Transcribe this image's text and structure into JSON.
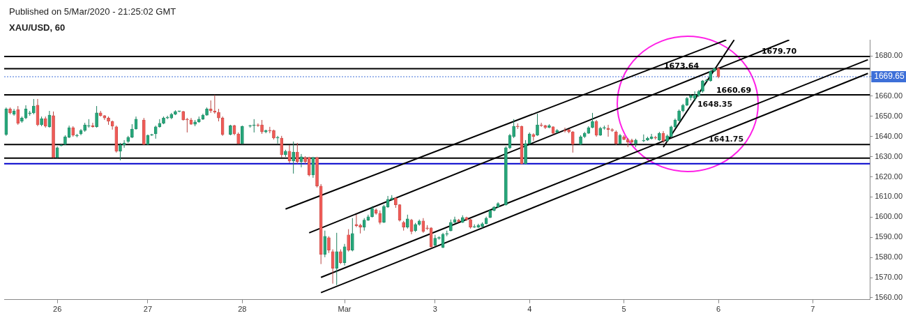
{
  "chart_data": {
    "type": "candlestick",
    "title": "XAU/USD, 60",
    "subtitle": "Published on 5/Mar/2020 - 21:25:02 GMT",
    "categories": [
      null,
      null,
      null,
      null,
      null,
      null,
      null,
      null,
      null,
      null,
      null,
      null,
      null,
      "26",
      null,
      null,
      null,
      null,
      null,
      null,
      null,
      null,
      null,
      null,
      null,
      null,
      null,
      null,
      null,
      null,
      null,
      null,
      null,
      null,
      null,
      null,
      "27",
      null,
      null,
      null,
      null,
      null,
      null,
      null,
      null,
      null,
      null,
      null,
      null,
      null,
      null,
      null,
      null,
      null,
      null,
      null,
      null,
      null,
      null,
      null,
      "28",
      null,
      null,
      null,
      null,
      null,
      null,
      null,
      null,
      null,
      null,
      null,
      null,
      null,
      null,
      null,
      null,
      null,
      null,
      null,
      null,
      null,
      null,
      null,
      null,
      null,
      "Mar",
      null,
      null,
      null,
      null,
      null,
      null,
      null,
      null,
      null,
      null,
      null,
      null,
      null,
      null,
      null,
      null,
      null,
      null,
      null,
      null,
      null,
      null,
      "3",
      null,
      null,
      null,
      null,
      null,
      null,
      null,
      null,
      null,
      null,
      null,
      null,
      null,
      null,
      null,
      null,
      null,
      null,
      null,
      null,
      null,
      null,
      null,
      "4",
      null,
      null,
      null,
      null,
      null,
      null,
      null,
      null,
      null,
      null,
      null,
      null,
      null,
      null,
      null,
      null,
      null,
      null,
      null,
      null,
      null,
      null,
      null,
      "5",
      null,
      null,
      null,
      null,
      null,
      null,
      null,
      null,
      null,
      null,
      null,
      null,
      null,
      null,
      null,
      null,
      null,
      null,
      null,
      null,
      null,
      null,
      null,
      "6",
      null,
      null,
      null,
      null,
      null,
      null,
      null,
      null,
      null,
      null,
      null,
      null,
      null,
      null,
      null,
      null,
      null,
      null,
      null,
      null,
      null,
      null,
      null,
      "7",
      null,
      null,
      null,
      null,
      null,
      null,
      null,
      null,
      null,
      null,
      null,
      null,
      null,
      null
    ],
    "ohlc": [
      [
        1641.0,
        1654.4,
        1640.3,
        1653.7
      ],
      [
        1653.7,
        1654.4,
        1651.0,
        1651.7
      ],
      [
        1651.0,
        1653.7,
        1650.3,
        1652.7
      ],
      [
        1653.4,
        1655.1,
        1645.8,
        1646.5
      ],
      [
        1647.5,
        1649.9,
        1646.8,
        1649.2
      ],
      [
        1649.2,
        1655.5,
        1648.6,
        1653.7
      ],
      [
        1651.3,
        1652.7,
        1650.3,
        1651.7
      ],
      [
        1651.7,
        1658.6,
        1651.0,
        1655.1
      ],
      [
        1655.5,
        1658.6,
        1645.1,
        1645.8
      ],
      [
        1645.8,
        1649.9,
        1645.1,
        1648.9
      ],
      [
        1648.9,
        1649.9,
        1644.4,
        1645.1
      ],
      [
        1644.8,
        1652.7,
        1644.4,
        1650.6
      ],
      [
        1650.3,
        1652.4,
        1629.3,
        1629.6
      ],
      [
        1629.6,
        1635.1,
        1629.3,
        1634.4
      ],
      [
        1635.4,
        1636.1,
        1635.1,
        1635.8
      ],
      [
        1636.1,
        1640.6,
        1635.8,
        1639.9
      ],
      [
        1639.6,
        1645.4,
        1639.2,
        1644.4
      ],
      [
        1644.4,
        1645.1,
        1639.9,
        1640.6
      ],
      [
        1640.3,
        1641.3,
        1639.6,
        1640.6
      ],
      [
        1641.3,
        1643.7,
        1640.6,
        1643.0
      ],
      [
        1643.0,
        1646.8,
        1642.3,
        1645.8
      ],
      [
        1645.1,
        1648.6,
        1644.4,
        1645.4
      ],
      [
        1645.4,
        1646.8,
        1644.4,
        1644.8
      ],
      [
        1644.8,
        1655.1,
        1644.4,
        1651.7
      ],
      [
        1651.7,
        1652.7,
        1649.9,
        1650.3
      ],
      [
        1650.3,
        1650.6,
        1648.2,
        1649.2
      ],
      [
        1649.2,
        1649.9,
        1645.8,
        1647.5
      ],
      [
        1647.5,
        1647.9,
        1643.4,
        1645.1
      ],
      [
        1644.8,
        1645.4,
        1632.0,
        1632.7
      ],
      [
        1632.7,
        1636.8,
        1628.2,
        1635.8
      ],
      [
        1635.8,
        1638.2,
        1634.4,
        1636.8
      ],
      [
        1637.5,
        1640.3,
        1636.8,
        1639.6
      ],
      [
        1639.6,
        1646.1,
        1639.2,
        1643.7
      ],
      [
        1643.7,
        1649.9,
        1643.4,
        1648.6
      ],
      null,
      [
        1648.2,
        1649.2,
        1635.8,
        1636.1
      ],
      [
        1636.1,
        1641.0,
        1635.8,
        1640.6
      ],
      [
        1640.6,
        1641.3,
        1640.3,
        1641.0
      ],
      [
        1641.3,
        1645.4,
        1638.9,
        1644.8
      ],
      [
        1644.8,
        1648.6,
        1644.4,
        1646.5
      ],
      [
        1646.5,
        1649.9,
        1646.1,
        1649.2
      ],
      [
        1649.2,
        1650.3,
        1648.6,
        1649.5
      ],
      [
        1649.2,
        1651.7,
        1648.6,
        1651.0
      ],
      [
        1651.0,
        1653.0,
        1650.6,
        1652.4
      ],
      [
        1652.4,
        1652.7,
        1652.0,
        1652.4
      ],
      [
        1652.4,
        1652.7,
        1647.9,
        1648.2
      ],
      [
        1648.6,
        1649.2,
        1642.0,
        1648.2
      ],
      [
        1648.2,
        1649.2,
        1645.8,
        1646.1
      ],
      [
        1646.1,
        1648.2,
        1645.1,
        1647.2
      ],
      [
        1647.2,
        1649.9,
        1646.8,
        1648.6
      ],
      [
        1648.6,
        1651.3,
        1648.2,
        1650.6
      ],
      [
        1650.6,
        1654.4,
        1650.3,
        1653.7
      ],
      [
        1653.7,
        1657.9,
        1651.7,
        1652.7
      ],
      [
        1652.7,
        1660.6,
        1651.3,
        1652.0
      ],
      [
        1652.0,
        1653.7,
        1647.5,
        1649.2
      ],
      [
        1649.2,
        1649.9,
        1640.3,
        1641.0
      ],
      null,
      [
        1641.0,
        1645.8,
        1640.6,
        1645.4
      ],
      [
        1645.4,
        1645.8,
        1640.6,
        1641.3
      ],
      [
        1641.3,
        1642.0,
        1636.1,
        1636.5
      ],
      [
        1636.5,
        1645.4,
        1636.1,
        1645.1
      ],
      null,
      [
        1645.1,
        1645.8,
        1644.4,
        1645.4
      ],
      [
        1645.4,
        1648.6,
        1642.0,
        1645.8
      ],
      [
        1645.8,
        1646.5,
        1644.8,
        1645.4
      ],
      [
        1645.8,
        1648.2,
        1641.3,
        1642.3
      ],
      [
        1642.3,
        1643.4,
        1641.6,
        1643.0
      ],
      [
        1643.0,
        1644.8,
        1641.6,
        1642.7
      ],
      [
        1643.0,
        1643.4,
        1638.5,
        1639.2
      ],
      [
        1639.2,
        1640.3,
        1636.5,
        1639.6
      ],
      [
        1639.2,
        1640.3,
        1629.6,
        1630.9
      ],
      [
        1630.9,
        1633.4,
        1629.9,
        1632.7
      ],
      [
        1632.7,
        1635.8,
        1626.8,
        1627.8
      ],
      [
        1627.8,
        1637.5,
        1621.6,
        1632.3
      ],
      [
        1632.3,
        1636.8,
        1626.4,
        1627.5
      ],
      [
        1627.5,
        1631.3,
        1624.7,
        1629.9
      ],
      [
        1629.6,
        1630.2,
        1626.4,
        1627.5
      ],
      [
        1629.6,
        1629.9,
        1620.2,
        1620.9
      ],
      [
        1620.9,
        1629.9,
        1619.5,
        1629.6
      ],
      [
        1629.6,
        1629.9,
        1614.7,
        1615.4
      ],
      [
        1615.4,
        1616.4,
        1576.7,
        1581.5
      ],
      [
        1581.5,
        1593.3,
        1580.1,
        1590.5
      ],
      [
        1589.8,
        1590.5,
        1582.2,
        1583.6
      ],
      [
        1582.9,
        1584.0,
        1567.0,
        1574.6
      ],
      [
        1574.6,
        1592.2,
        1566.3,
        1582.9
      ],
      [
        1582.9,
        1584.0,
        1576.7,
        1577.4
      ],
      [
        1577.4,
        1586.7,
        1576.0,
        1585.3
      ],
      [
        1591.2,
        1594.0,
        1582.9,
        1583.6
      ],
      [
        1583.6,
        1599.5,
        1583.0,
        1591.9
      ],
      [
        1596.4,
        1601.2,
        1595.0,
        1595.7
      ],
      [
        1596.0,
        1596.7,
        1591.9,
        1595.0
      ],
      [
        1595.0,
        1599.5,
        1593.3,
        1598.5
      ],
      [
        1598.5,
        1601.2,
        1598.1,
        1600.2
      ],
      [
        1600.2,
        1605.4,
        1599.8,
        1604.3
      ],
      [
        1603.6,
        1604.3,
        1601.2,
        1601.9
      ],
      [
        1601.9,
        1603.3,
        1596.4,
        1597.4
      ],
      [
        1597.4,
        1606.1,
        1597.1,
        1605.4
      ],
      [
        1605.0,
        1610.5,
        1604.6,
        1608.8
      ],
      [
        1608.8,
        1610.9,
        1608.1,
        1609.5
      ],
      [
        1609.5,
        1609.8,
        1604.6,
        1606.1
      ],
      [
        1606.1,
        1606.4,
        1597.8,
        1598.5
      ],
      [
        1597.4,
        1598.1,
        1593.3,
        1595.0
      ],
      [
        1595.0,
        1601.2,
        1594.3,
        1599.1
      ],
      [
        1598.5,
        1599.1,
        1591.5,
        1592.9
      ],
      [
        1593.3,
        1597.1,
        1592.6,
        1596.4
      ],
      [
        1596.4,
        1598.8,
        1595.7,
        1598.1
      ],
      [
        1598.1,
        1599.5,
        1592.2,
        1592.9
      ],
      [
        1594.6,
        1596.0,
        1593.6,
        1594.3
      ],
      [
        1594.6,
        1595.0,
        1584.6,
        1585.3
      ],
      [
        1586.0,
        1591.2,
        1585.6,
        1589.5
      ],
      [
        1589.5,
        1590.5,
        1588.8,
        1589.8
      ],
      [
        1585.0,
        1592.2,
        1584.6,
        1591.5
      ],
      [
        1591.5,
        1593.3,
        1590.5,
        1591.9
      ],
      [
        1593.3,
        1598.8,
        1592.9,
        1597.4
      ],
      [
        1597.4,
        1600.2,
        1597.1,
        1598.8
      ],
      [
        1598.5,
        1599.1,
        1597.4,
        1597.8
      ],
      [
        1597.4,
        1600.9,
        1597.1,
        1599.8
      ],
      [
        1599.8,
        1600.2,
        1598.1,
        1598.8
      ],
      [
        1598.8,
        1599.1,
        1594.3,
        1595.0
      ],
      [
        1595.0,
        1596.4,
        1594.6,
        1595.3
      ],
      [
        1595.0,
        1596.7,
        1594.6,
        1596.0
      ],
      [
        1595.3,
        1597.4,
        1594.6,
        1596.7
      ],
      [
        1596.7,
        1600.2,
        1596.4,
        1599.5
      ],
      [
        1599.8,
        1603.6,
        1599.5,
        1603.3
      ],
      [
        1603.3,
        1605.4,
        1602.9,
        1605.0
      ],
      [
        1605.0,
        1607.4,
        1604.6,
        1606.7
      ],
      null,
      [
        1606.1,
        1635.1,
        1605.7,
        1634.4
      ],
      [
        1634.4,
        1641.3,
        1633.7,
        1640.6
      ],
      [
        1639.9,
        1648.6,
        1639.2,
        1645.1
      ],
      [
        1645.1,
        1646.5,
        1643.7,
        1644.8
      ],
      [
        1645.1,
        1645.4,
        1626.1,
        1626.4
      ],
      [
        1626.4,
        1638.2,
        1626.1,
        1636.5
      ],
      [
        1636.5,
        1642.0,
        1636.1,
        1641.3
      ],
      [
        1641.0,
        1641.6,
        1637.9,
        1639.9
      ],
      [
        1640.6,
        1651.3,
        1640.3,
        1645.8
      ],
      [
        1645.8,
        1646.8,
        1644.8,
        1645.4
      ],
      [
        1645.4,
        1645.8,
        1643.7,
        1644.4
      ],
      [
        1644.4,
        1646.1,
        1644.1,
        1645.4
      ],
      [
        1644.8,
        1645.1,
        1641.0,
        1641.6
      ],
      [
        1642.0,
        1643.7,
        1641.6,
        1643.0
      ],
      null,
      [
        1643.0,
        1644.4,
        1642.0,
        1642.7
      ],
      [
        1643.4,
        1643.7,
        1641.6,
        1642.3
      ],
      [
        1642.3,
        1642.7,
        1632.0,
        1636.1
      ],
      null,
      [
        1636.1,
        1640.6,
        1635.8,
        1639.9
      ],
      [
        1639.9,
        1642.3,
        1639.2,
        1641.6
      ],
      [
        1641.6,
        1645.1,
        1641.3,
        1644.4
      ],
      [
        1644.4,
        1651.7,
        1644.1,
        1647.5
      ],
      [
        1647.5,
        1648.2,
        1639.9,
        1640.6
      ],
      [
        1640.6,
        1644.8,
        1640.3,
        1644.1
      ],
      [
        1644.1,
        1645.4,
        1643.4,
        1644.1
      ],
      [
        1644.1,
        1645.8,
        1639.9,
        1643.4
      ],
      [
        1643.4,
        1644.1,
        1642.3,
        1643.0
      ],
      [
        1642.3,
        1643.0,
        1635.8,
        1636.5
      ],
      [
        1636.5,
        1641.3,
        1636.1,
        1640.6
      ],
      [
        1639.9,
        1640.6,
        1638.2,
        1638.5
      ],
      [
        1638.5,
        1639.2,
        1634.7,
        1637.2
      ],
      [
        1638.2,
        1638.9,
        1636.5,
        1637.2
      ],
      [
        1636.5,
        1638.9,
        1634.7,
        1638.2
      ],
      null,
      [
        1637.8,
        1641.0,
        1637.2,
        1637.8
      ],
      [
        1638.2,
        1639.9,
        1637.8,
        1639.2
      ],
      [
        1638.9,
        1641.3,
        1638.5,
        1639.9
      ],
      [
        1639.6,
        1640.3,
        1638.5,
        1639.2
      ],
      [
        1638.2,
        1642.3,
        1637.8,
        1641.6
      ],
      [
        1641.6,
        1642.7,
        1636.8,
        1637.8
      ],
      [
        1637.8,
        1641.0,
        1637.2,
        1640.3
      ],
      [
        1639.9,
        1645.4,
        1639.6,
        1644.8
      ],
      [
        1644.8,
        1648.9,
        1644.1,
        1648.2
      ],
      [
        1647.9,
        1653.4,
        1647.5,
        1652.7
      ],
      [
        1652.7,
        1656.2,
        1652.0,
        1655.5
      ],
      [
        1655.5,
        1659.6,
        1655.1,
        1658.9
      ],
      [
        1659.3,
        1661.0,
        1657.9,
        1660.3
      ],
      [
        1658.9,
        1662.4,
        1657.5,
        1660.6
      ],
      [
        1660.3,
        1663.1,
        1659.6,
        1662.4
      ],
      [
        1662.4,
        1668.0,
        1661.7,
        1667.6
      ],
      [
        1667.6,
        1668.6,
        1667.2,
        1667.9
      ],
      [
        1667.6,
        1672.8,
        1667.2,
        1672.4
      ],
      [
        1672.4,
        1674.1,
        1672.1,
        1673.8
      ],
      [
        1673.8,
        1674.5,
        1668.9,
        1669.65
      ],
      null,
      null,
      null,
      null,
      null,
      null,
      null,
      null,
      null,
      null,
      null,
      null,
      null,
      null,
      null,
      null,
      null,
      null,
      null,
      null,
      null,
      null,
      null,
      null,
      null,
      null,
      null,
      null,
      null,
      null,
      null,
      null,
      null,
      null,
      null,
      null,
      null,
      null
    ],
    "series": [
      {
        "type": "line",
        "color": "#000000",
        "values": [
          null,
          null,
          null,
          null,
          null,
          null,
          null,
          null,
          null,
          null,
          null,
          null,
          null,
          null,
          null,
          null,
          null,
          null,
          null,
          null,
          null,
          null,
          null,
          null,
          null,
          null,
          null,
          null,
          null,
          null,
          null,
          null,
          null,
          null,
          null,
          null,
          null,
          null,
          null,
          null,
          null,
          null,
          null,
          null,
          null,
          null,
          null,
          null,
          null,
          null,
          null,
          null,
          null,
          null,
          null,
          null,
          null,
          null,
          null,
          null,
          null,
          null,
          null,
          null,
          null,
          null,
          null,
          null,
          null,
          null,
          null,
          1604.0,
          null,
          null,
          null,
          null,
          null,
          null,
          null,
          null,
          null,
          null,
          null,
          null,
          null,
          null,
          null,
          null,
          null,
          null,
          null,
          null,
          null,
          null,
          null,
          null,
          null,
          null,
          null,
          null,
          null,
          null,
          null,
          null,
          null,
          null,
          null,
          null,
          null,
          null,
          null,
          null,
          null,
          null,
          null,
          null,
          null,
          null,
          null,
          null,
          null,
          null,
          null,
          null,
          null,
          null,
          null,
          null,
          null,
          null,
          null,
          null,
          null,
          null,
          null,
          null,
          null,
          null,
          null,
          null,
          null,
          null,
          null,
          null,
          null,
          null,
          null,
          null,
          null,
          null,
          null,
          null,
          null,
          null,
          null,
          null,
          null,
          null,
          null,
          null,
          null,
          null,
          null,
          null,
          null,
          null,
          null,
          null,
          null,
          null,
          null,
          null,
          null,
          null,
          null,
          null,
          null,
          null,
          null,
          null,
          null,
          null,
          null,
          1687.9,
          null,
          null,
          null,
          null,
          null,
          null,
          null,
          null,
          null,
          null,
          null,
          null,
          null,
          null,
          null,
          null,
          null,
          null,
          null,
          null,
          null,
          null,
          null,
          null,
          null,
          null,
          null,
          null,
          null,
          null,
          null,
          null,
          null,
          null,
          null,
          null
        ]
      },
      {
        "type": "line",
        "color": "#000000",
        "values": [
          null,
          null,
          null,
          null,
          null,
          null,
          null,
          null,
          null,
          null,
          null,
          null,
          null,
          null,
          null,
          null,
          null,
          null,
          null,
          null,
          null,
          null,
          null,
          null,
          null,
          null,
          null,
          null,
          null,
          null,
          null,
          null,
          null,
          null,
          null,
          null,
          null,
          null,
          null,
          null,
          null,
          null,
          null,
          null,
          null,
          null,
          null,
          null,
          null,
          null,
          null,
          null,
          null,
          null,
          null,
          null,
          null,
          null,
          null,
          null,
          null,
          null,
          null,
          null,
          null,
          null,
          null,
          null,
          null,
          null,
          null,
          null,
          null,
          null,
          null,
          null,
          null,
          1592.2,
          null,
          null,
          null,
          null,
          null,
          null,
          null,
          null,
          null,
          null,
          null,
          null,
          null,
          null,
          null,
          null,
          null,
          null,
          null,
          null,
          null,
          null,
          null,
          null,
          null,
          null,
          null,
          null,
          null,
          null,
          null,
          null,
          null,
          null,
          null,
          null,
          null,
          null,
          null,
          null,
          null,
          null,
          null,
          null,
          null,
          null,
          null,
          null,
          null,
          null,
          null,
          null,
          null,
          null,
          null,
          null,
          null,
          null,
          null,
          null,
          null,
          null,
          null,
          null,
          null,
          null,
          null,
          null,
          null,
          null,
          null,
          null,
          null,
          null,
          null,
          null,
          null,
          null,
          null,
          null,
          null,
          null,
          null,
          null,
          null,
          null,
          null,
          null,
          null,
          null,
          null,
          null,
          null,
          null,
          null,
          null,
          null,
          null,
          null,
          null,
          null,
          null,
          null,
          null,
          null,
          null,
          null,
          null,
          null,
          null,
          null,
          null,
          null,
          null,
          null,
          null,
          null,
          null,
          null,
          null,
          null,
          1687.9,
          null,
          null,
          null,
          null,
          null,
          null,
          null,
          null,
          null,
          null,
          null,
          null,
          null,
          null,
          null,
          null,
          null,
          null,
          null,
          null
        ]
      },
      {
        "type": "line",
        "color": "#000000",
        "values": [
          null,
          null,
          null,
          null,
          null,
          null,
          null,
          null,
          null,
          null,
          null,
          null,
          null,
          null,
          null,
          null,
          null,
          null,
          null,
          null,
          null,
          null,
          null,
          null,
          null,
          null,
          null,
          null,
          null,
          null,
          null,
          null,
          null,
          null,
          null,
          null,
          null,
          null,
          null,
          null,
          null,
          null,
          null,
          null,
          null,
          null,
          null,
          null,
          null,
          null,
          null,
          null,
          null,
          null,
          null,
          null,
          null,
          null,
          null,
          null,
          null,
          null,
          null,
          null,
          null,
          null,
          null,
          null,
          null,
          null,
          null,
          null,
          null,
          null,
          null,
          null,
          null,
          null,
          null,
          null,
          1570.1,
          null,
          null,
          null,
          null,
          null,
          null,
          null,
          null,
          null,
          null,
          null,
          null,
          null,
          null,
          null,
          null,
          null,
          null,
          null,
          null,
          null,
          null,
          null,
          null,
          null,
          null,
          null,
          null,
          null,
          null,
          null,
          null,
          null,
          null,
          null,
          null,
          null,
          null,
          null,
          null,
          null,
          null,
          null,
          null,
          null,
          null,
          null,
          null,
          null,
          null,
          null,
          null,
          null,
          null,
          null,
          null,
          null,
          null,
          null,
          null,
          null,
          null,
          null,
          null,
          null,
          null,
          null,
          null,
          null,
          null,
          null,
          null,
          null,
          null,
          null,
          null,
          null,
          null,
          null,
          null,
          null,
          null,
          null,
          null,
          null,
          null,
          null,
          null,
          null,
          null,
          null,
          null,
          null,
          null,
          null,
          null,
          null,
          null,
          null,
          null,
          null,
          null,
          null,
          null,
          null,
          null,
          null,
          null,
          null,
          null,
          null,
          null,
          null,
          null,
          null,
          null,
          null,
          null,
          null,
          null,
          null,
          null,
          null,
          null,
          null,
          null,
          null,
          null,
          null,
          null,
          null,
          null,
          null,
          null,
          null,
          null,
          null,
          null,
          1678.1
        ]
      },
      {
        "type": "line",
        "color": "#000000",
        "values": [
          null,
          null,
          null,
          null,
          null,
          null,
          null,
          null,
          null,
          null,
          null,
          null,
          null,
          null,
          null,
          null,
          null,
          null,
          null,
          null,
          null,
          null,
          null,
          null,
          null,
          null,
          null,
          null,
          null,
          null,
          null,
          null,
          null,
          null,
          null,
          null,
          null,
          null,
          null,
          null,
          null,
          null,
          null,
          null,
          null,
          null,
          null,
          null,
          null,
          null,
          null,
          null,
          null,
          null,
          null,
          null,
          null,
          null,
          null,
          null,
          null,
          null,
          null,
          null,
          null,
          null,
          null,
          null,
          null,
          null,
          null,
          null,
          null,
          null,
          null,
          null,
          null,
          null,
          null,
          null,
          1562.5,
          null,
          null,
          null,
          null,
          null,
          null,
          null,
          null,
          null,
          null,
          null,
          null,
          null,
          null,
          null,
          null,
          null,
          null,
          null,
          null,
          null,
          null,
          null,
          null,
          null,
          null,
          null,
          null,
          null,
          null,
          null,
          null,
          null,
          null,
          null,
          null,
          null,
          null,
          null,
          null,
          null,
          null,
          null,
          null,
          null,
          null,
          null,
          null,
          null,
          null,
          null,
          null,
          null,
          null,
          null,
          null,
          null,
          null,
          null,
          null,
          null,
          null,
          null,
          null,
          null,
          null,
          null,
          null,
          null,
          null,
          null,
          null,
          null,
          null,
          null,
          null,
          null,
          null,
          null,
          null,
          null,
          null,
          null,
          null,
          null,
          null,
          null,
          null,
          null,
          null,
          null,
          null,
          null,
          null,
          null,
          null,
          null,
          null,
          null,
          null,
          null,
          null,
          null,
          null,
          null,
          null,
          null,
          null,
          null,
          null,
          null,
          null,
          null,
          null,
          null,
          null,
          null,
          null,
          null,
          null,
          null,
          null,
          null,
          null,
          null,
          null,
          null,
          null,
          null,
          null,
          null,
          null,
          null,
          null,
          null,
          null,
          null,
          null,
          1671.3
        ]
      },
      {
        "type": "line",
        "color": "#000000",
        "values": [
          null,
          null,
          null,
          null,
          null,
          null,
          null,
          null,
          null,
          null,
          null,
          null,
          null,
          null,
          null,
          null,
          null,
          null,
          null,
          null,
          null,
          null,
          null,
          null,
          null,
          null,
          null,
          null,
          null,
          null,
          null,
          null,
          null,
          null,
          null,
          null,
          null,
          null,
          null,
          null,
          null,
          null,
          null,
          null,
          null,
          null,
          null,
          null,
          null,
          null,
          null,
          null,
          null,
          null,
          null,
          null,
          null,
          null,
          null,
          null,
          null,
          null,
          null,
          null,
          null,
          null,
          null,
          null,
          null,
          null,
          null,
          null,
          null,
          null,
          null,
          null,
          null,
          null,
          null,
          null,
          null,
          null,
          null,
          null,
          null,
          null,
          null,
          null,
          null,
          null,
          null,
          null,
          null,
          null,
          null,
          null,
          null,
          null,
          null,
          null,
          null,
          null,
          null,
          null,
          null,
          null,
          null,
          null,
          null,
          null,
          null,
          null,
          null,
          null,
          null,
          null,
          null,
          null,
          null,
          null,
          null,
          null,
          null,
          null,
          null,
          null,
          null,
          null,
          null,
          null,
          null,
          null,
          null,
          null,
          null,
          null,
          null,
          null,
          null,
          null,
          null,
          null,
          null,
          null,
          null,
          null,
          null,
          null,
          null,
          null,
          null,
          null,
          null,
          null,
          null,
          null,
          null,
          null,
          null,
          null,
          null,
          null,
          null,
          null,
          null,
          null,
          null,
          1634.7,
          null,
          null,
          null,
          null,
          null,
          null,
          null,
          null,
          null,
          null,
          null,
          null,
          null,
          null,
          null,
          null,
          null,
          1687.9,
          null,
          null,
          null,
          null,
          null,
          null,
          null,
          null,
          null,
          null,
          null,
          null,
          null,
          null,
          null,
          null,
          null,
          null,
          null,
          null,
          null,
          null,
          null,
          null,
          null,
          null,
          null,
          null,
          null,
          null,
          null,
          null,
          null,
          null
        ]
      }
    ],
    "ref_lines": [
      {
        "axis": "y",
        "value": 1679.7,
        "label": "1679.70",
        "color": "#000000"
      },
      {
        "axis": "y",
        "value": 1673.64,
        "label": "1673.64",
        "color": "#000000"
      },
      {
        "axis": "y",
        "value": 1660.69,
        "label": "1660.69",
        "color": "#000000"
      },
      {
        "axis": "y",
        "value": 1636.0,
        "color": "#000000"
      },
      {
        "axis": "y",
        "value": 1629.3,
        "color": "#000000"
      },
      {
        "axis": "y",
        "value": 1626.5,
        "color": "#0000cc"
      },
      {
        "axis": "y",
        "value": 1669.65,
        "label": "1669.65",
        "color": "#3d6fd8",
        "line_style": "dotted"
      }
    ],
    "annotations": [
      "1648.35",
      "1641.75"
    ],
    "ylim": [
      1559,
      1688
    ],
    "yticks": [
      {
        "value": 1560,
        "label": "1560.00"
      },
      {
        "value": 1570,
        "label": "1570.00"
      },
      {
        "value": 1580,
        "label": "1580.00"
      },
      {
        "value": 1590,
        "label": "1590.00"
      },
      {
        "value": 1600,
        "label": "1600.00"
      },
      {
        "value": 1610,
        "label": "1610.00"
      },
      {
        "value": 1620,
        "label": "1620.00"
      },
      {
        "value": 1630,
        "label": "1630.00"
      },
      {
        "value": 1640,
        "label": "1640.00"
      },
      {
        "value": 1650,
        "label": "1650.00"
      },
      {
        "value": 1660,
        "label": "1660.00"
      },
      {
        "value": 1670,
        "label": null
      },
      {
        "value": 1680,
        "label": "1680.00"
      }
    ],
    "grid": false,
    "legend": false
  }
}
